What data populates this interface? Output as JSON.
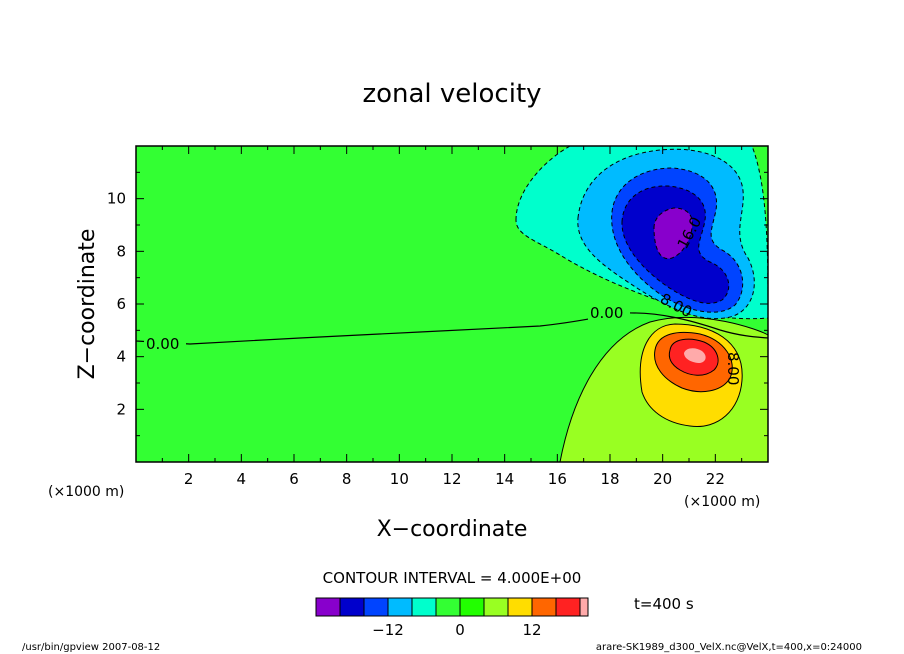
{
  "chart_data": {
    "type": "contour",
    "title": "zonal velocity",
    "xlabel": "X−coordinate",
    "ylabel": "Z−coordinate",
    "x_unit": "(×1000 m)",
    "y_unit": "(×1000 m)",
    "xlim": [
      0,
      24
    ],
    "ylim": [
      0,
      12
    ],
    "x_ticks": [
      2,
      4,
      6,
      8,
      10,
      12,
      14,
      16,
      18,
      20,
      22
    ],
    "y_ticks": [
      2,
      4,
      6,
      8,
      10
    ],
    "contour_interval": "CONTOUR INTERVAL = 4.000E+00",
    "contour_labels": [
      "0.00",
      "0.00",
      "8.00",
      "8.00",
      "16.0"
    ],
    "colorbar": {
      "levels": [
        -20,
        -16,
        -12,
        -8,
        -4,
        0,
        4,
        8,
        12,
        16,
        20
      ],
      "tick_labels": [
        "−12",
        "0",
        "12"
      ],
      "tick_values": [
        -12,
        0,
        12
      ],
      "colors": [
        "#8800cc",
        "#0000cc",
        "#0044ff",
        "#00bbff",
        "#00ffcc",
        "#33ff33",
        "#22ff00",
        "#99ff22",
        "#ffdd00",
        "#ff6600",
        "#ff2222",
        "#ffaaaa"
      ]
    },
    "time_label": "t=400 s",
    "footer_left": "/usr/bin/gpview  2007-08-12",
    "footer_right": "arare-SK1989_d300_VelX.nc@VelX,t=400,x=0:24000"
  }
}
